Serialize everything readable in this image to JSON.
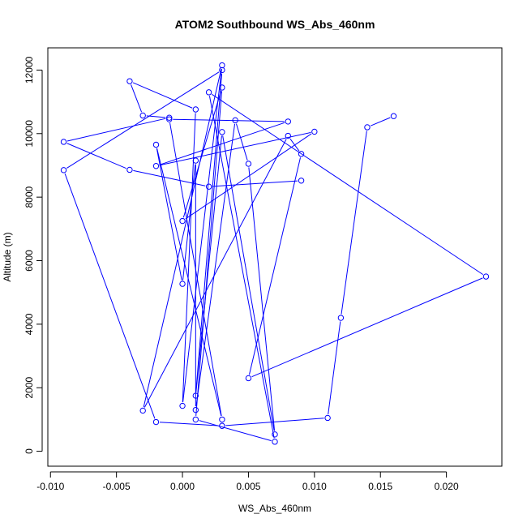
{
  "chart_data": {
    "type": "line",
    "title": "ATOM2 Southbound WS_Abs_460nm",
    "xlabel": "WS_Abs_460nm",
    "ylabel": "Altitude (m)",
    "xlim": [
      -0.0102,
      0.0242
    ],
    "ylim": [
      -470,
      12700
    ],
    "x_ticks": [
      -0.01,
      -0.005,
      0.0,
      0.005,
      0.01,
      0.015,
      0.02
    ],
    "x_tick_labels": [
      "-0.010",
      "-0.005",
      "0.000",
      "0.005",
      "0.010",
      "0.015",
      "0.020"
    ],
    "y_ticks": [
      0,
      2000,
      4000,
      6000,
      8000,
      10000,
      12000
    ],
    "y_tick_labels": [
      "0",
      "2000",
      "4000",
      "6000",
      "8000",
      "10000",
      "12000"
    ],
    "grid": false,
    "series_color": "#0000ff",
    "points": [
      [
        0.016,
        10550
      ],
      [
        0.014,
        10200
      ],
      [
        0.012,
        4200
      ],
      [
        0.011,
        1050
      ],
      [
        0.003,
        800
      ],
      [
        -0.002,
        920
      ],
      [
        -0.009,
        8850
      ],
      [
        0.003,
        12000
      ],
      [
        0.001,
        1750
      ],
      [
        0.003,
        10050
      ],
      [
        0.007,
        530
      ],
      [
        0.005,
        9050
      ],
      [
        0.004,
        10420
      ],
      [
        0.001,
        1300
      ],
      [
        0.001,
        9150
      ],
      [
        0.0,
        5270
      ],
      [
        -0.002,
        9650
      ],
      [
        0.003,
        1000
      ],
      [
        -0.001,
        10450
      ],
      [
        0.008,
        10380
      ],
      [
        -0.002,
        8980
      ],
      [
        0.01,
        10060
      ],
      [
        0.0,
        7250
      ],
      [
        0.003,
        11450
      ],
      [
        0.001,
        1000
      ],
      [
        0.007,
        300
      ],
      [
        0.002,
        11300
      ],
      [
        0.023,
        5500
      ],
      [
        0.005,
        2300
      ],
      [
        0.009,
        9360
      ],
      [
        0.008,
        9930
      ],
      [
        -0.003,
        1280
      ],
      [
        0.003,
        12150
      ],
      [
        0.0,
        1430
      ],
      [
        0.001,
        10760
      ],
      [
        -0.004,
        11650
      ],
      [
        -0.003,
        10570
      ],
      [
        -0.001,
        10500
      ],
      [
        -0.009,
        9740
      ],
      [
        -0.004,
        8860
      ],
      [
        0.002,
        8330
      ],
      [
        0.009,
        8520
      ]
    ]
  }
}
